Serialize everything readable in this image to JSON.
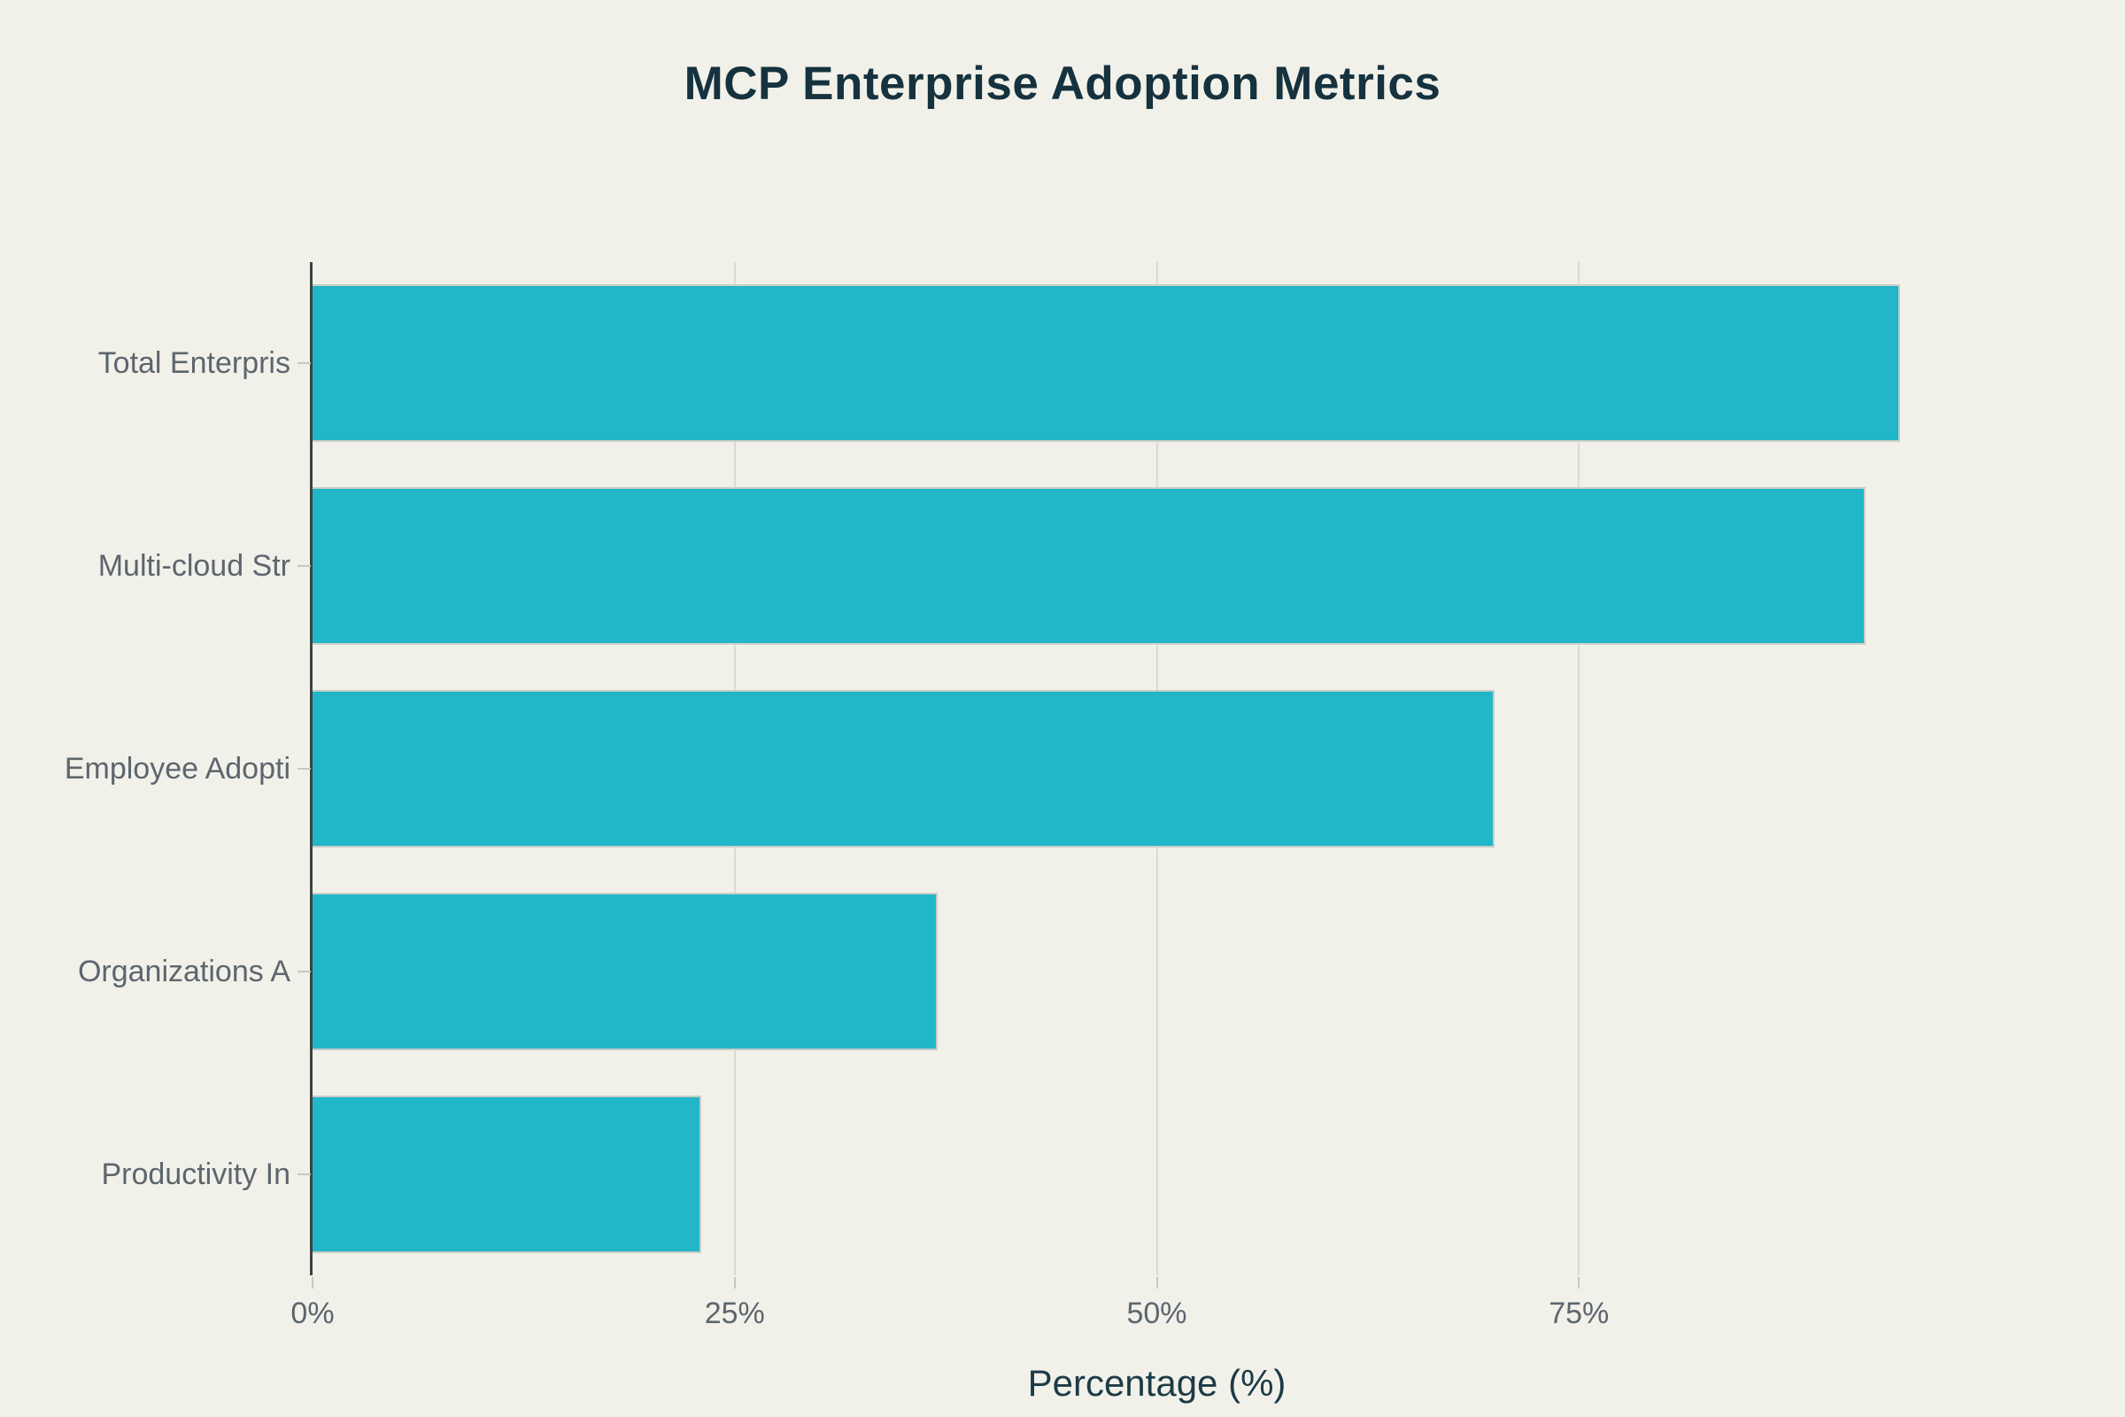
{
  "chart_data": {
    "type": "bar",
    "orientation": "horizontal",
    "title": "MCP Enterprise Adoption Metrics",
    "categories": [
      "Total Enterpris",
      "Multi-cloud Str",
      "Employee Adopti",
      "Organizations A",
      "Productivity In"
    ],
    "values": [
      94,
      92,
      70,
      37,
      23
    ],
    "xlabel": "Percentage (%)",
    "ylabel": "",
    "xlim": [
      0,
      100
    ],
    "xticks": [
      {
        "value": 0,
        "label": "0%"
      },
      {
        "value": 25,
        "label": "25%"
      },
      {
        "value": 50,
        "label": "50%"
      },
      {
        "value": 75,
        "label": "75%"
      }
    ],
    "grid": true,
    "gridlines_at": [
      25,
      50,
      75
    ],
    "legend": false,
    "colors": {
      "bar_fill": "#21b6c8",
      "bar_border": "#c9cfc7",
      "background": "#f1f1ea",
      "title_text": "#15323e",
      "axis_label_text": "#5d666d",
      "x_axis_title_text": "#1d3b46",
      "gridline": "#dadbd1",
      "y_axis_line": "#3c4240",
      "tick_mark": "#c7c9c0"
    }
  }
}
